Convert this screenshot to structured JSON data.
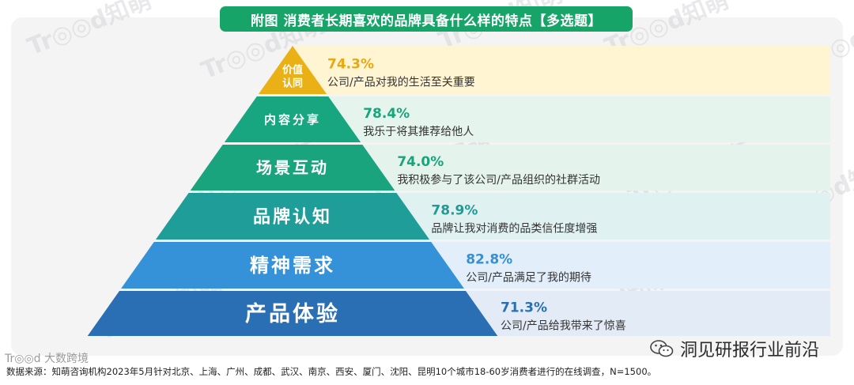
{
  "title": "附图  消费者长期喜欢的品牌具备什么样的特点【多选题】",
  "source": "数据来源：知萌咨询机构2023年5月针对北京、上海、广州、成都、武汉、南京、西安、厦门、沈阳、昆明10个城市18-60岁消费者进行的在线调查，N=1500。",
  "wechat_label": "洞见研报行业前沿",
  "watermark": "Tr◎◎d知萌",
  "watermark_left": "Tr◎◎d 大数跨境",
  "colors": {
    "title_bg": "#17a468",
    "level_colors": [
      "#e9b116",
      "#17a67f",
      "#1aa47e",
      "#1f9d98",
      "#3592d8",
      "#2a6fb3"
    ],
    "pct_colors": [
      "#e9a811",
      "#19a47c",
      "#19a47c",
      "#1f9b93",
      "#3290d6",
      "#2a6fb2"
    ],
    "band_colors": [
      "#fff5d2",
      "#e5f4ec",
      "#e4f3ec",
      "#e0f1f1",
      "#e2eef9",
      "#e2ebf6"
    ]
  },
  "chart_data": {
    "type": "pyramid",
    "title": "附图  消费者长期喜欢的品牌具备什么样的特点【多选题】",
    "levels": [
      {
        "label": "价值认同",
        "value": 74.3,
        "value_label": "74.3%",
        "description": "公司/产品对我的生活至关重要"
      },
      {
        "label": "内容分享",
        "value": 78.4,
        "value_label": "78.4%",
        "description": "我乐于将其推荐给他人"
      },
      {
        "label": "场景互动",
        "value": 74.0,
        "value_label": "74.0%",
        "description": "我积极参与了该公司/产品组织的社群活动"
      },
      {
        "label": "品牌认知",
        "value": 78.9,
        "value_label": "78.9%",
        "description": "品牌让我对消费的品类信任度增强"
      },
      {
        "label": "精神需求",
        "value": 82.8,
        "value_label": "82.8%",
        "description": "公司/产品满足了我的期待"
      },
      {
        "label": "产品体验",
        "value": 71.3,
        "value_label": "71.3%",
        "description": "公司/产品给我带来了惊喜"
      }
    ]
  }
}
